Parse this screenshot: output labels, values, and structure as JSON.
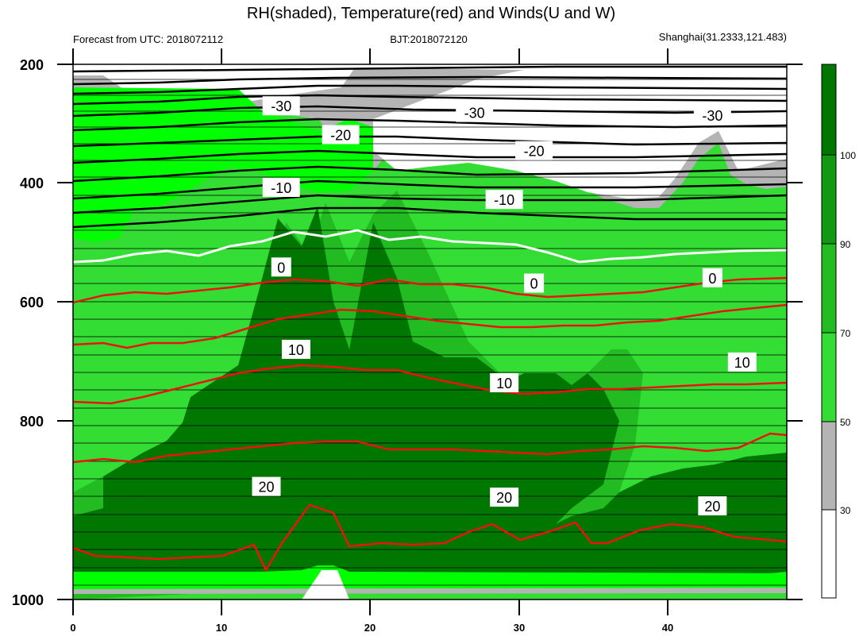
{
  "chart_data": {
    "type": "heatmap",
    "title": "RH(shaded), Temperature(red) and Winds(U and W)",
    "subtitle_left": "Forecast from UTC: 2018072112",
    "subtitle_center": "BJT:2018072120",
    "subtitle_right": "Shanghai(31.2333,121.483)",
    "x_range": [
      0,
      48
    ],
    "x_ticks": [
      "0",
      "10",
      "20",
      "30",
      "40"
    ],
    "y_range": [
      200,
      1000
    ],
    "y_ticks": [
      "200",
      "400",
      "600",
      "800",
      "1000"
    ],
    "y_reversed": true,
    "colorbar": {
      "levels": [
        "30",
        "50",
        "70",
        "90",
        "100"
      ],
      "colors": [
        "#ffffff",
        "#b4b4b4",
        "#00ff00",
        "#33dd33",
        "#22bb22",
        "#119911",
        "#007700"
      ]
    },
    "contour_labels": [
      {
        "text": "-30",
        "x": 14,
        "y": 262
      },
      {
        "text": "-30",
        "x": 27,
        "y": 272
      },
      {
        "text": "-30",
        "x": 43,
        "y": 276
      },
      {
        "text": "-20",
        "x": 18,
        "y": 305
      },
      {
        "text": "-20",
        "x": 31,
        "y": 329
      },
      {
        "text": "-10",
        "x": 14,
        "y": 384
      },
      {
        "text": "-10",
        "x": 29,
        "y": 402
      },
      {
        "text": "0",
        "x": 14,
        "y": 503
      },
      {
        "text": "0",
        "x": 31,
        "y": 527
      },
      {
        "text": "0",
        "x": 43,
        "y": 519
      },
      {
        "text": "10",
        "x": 15,
        "y": 626
      },
      {
        "text": "10",
        "x": 29,
        "y": 676
      },
      {
        "text": "10",
        "x": 45,
        "y": 645
      },
      {
        "text": "20",
        "x": 13,
        "y": 831
      },
      {
        "text": "20",
        "x": 29,
        "y": 847
      },
      {
        "text": "20",
        "x": 43,
        "y": 860
      }
    ]
  }
}
